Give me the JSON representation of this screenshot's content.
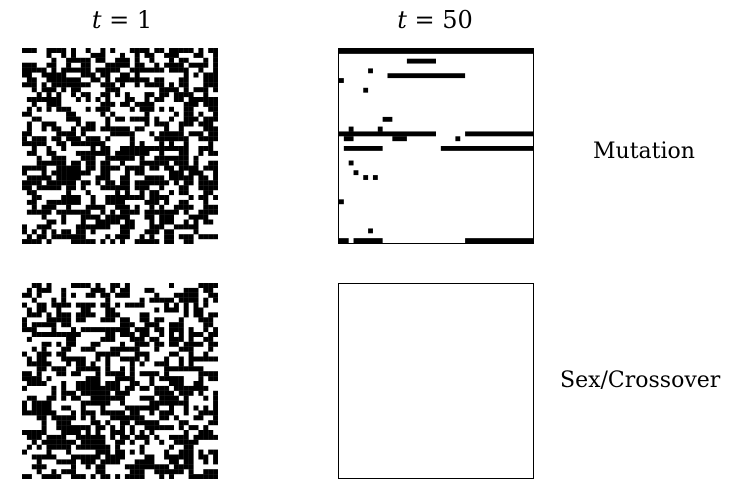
{
  "columns": [
    {
      "var": "t",
      "eq": " = ",
      "value": "1"
    },
    {
      "var": "t",
      "eq": " = ",
      "value": "50"
    }
  ],
  "rows": [
    {
      "label": "Mutation"
    },
    {
      "label": "Sex/Crossover"
    }
  ],
  "grid": {
    "size": 40
  },
  "mutation_t50_segments": [
    [
      0,
      0,
      40
    ],
    [
      2,
      14,
      20
    ],
    [
      5,
      10,
      26
    ],
    [
      4,
      6,
      7
    ],
    [
      6,
      0,
      1
    ],
    [
      8,
      5,
      6
    ],
    [
      14,
      9,
      11
    ],
    [
      16,
      2,
      3
    ],
    [
      16,
      8,
      9
    ],
    [
      17,
      0,
      20
    ],
    [
      17,
      26,
      40
    ],
    [
      18,
      1,
      3
    ],
    [
      18,
      11,
      14
    ],
    [
      18,
      24,
      25
    ],
    [
      20,
      1,
      9
    ],
    [
      20,
      21,
      40
    ],
    [
      23,
      2,
      3
    ],
    [
      25,
      3,
      4
    ],
    [
      26,
      7,
      8
    ],
    [
      26,
      5,
      6
    ],
    [
      31,
      0,
      1
    ],
    [
      37,
      6,
      7
    ],
    [
      39,
      0,
      2
    ],
    [
      39,
      3,
      9
    ],
    [
      39,
      26,
      40
    ]
  ],
  "colors": {
    "on": "#000000",
    "off": "#ffffff"
  }
}
